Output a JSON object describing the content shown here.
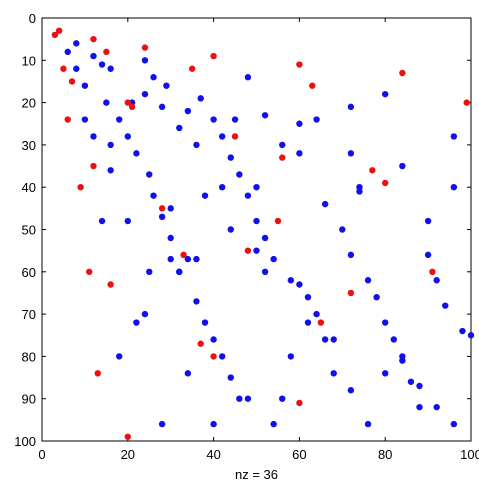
{
  "chart_data": {
    "type": "scatter",
    "title": "",
    "xlabel": "nz = 36",
    "ylabel": "",
    "xlim": [
      0,
      100
    ],
    "ylim": [
      0,
      100
    ],
    "y_reversed": true,
    "grid": false,
    "legend": "none",
    "x_ticks": [
      0,
      20,
      40,
      60,
      80,
      100
    ],
    "y_ticks": [
      0,
      10,
      20,
      30,
      40,
      50,
      60,
      70,
      80,
      90,
      100
    ],
    "x_tick_labels": [
      "0",
      "20",
      "40",
      "60",
      "80",
      "100"
    ],
    "y_tick_labels": [
      "0",
      "10",
      "20",
      "30",
      "40",
      "50",
      "60",
      "70",
      "80",
      "90",
      "100"
    ],
    "series": [
      {
        "color": "#1010ee",
        "points": [
          [
            6,
            8
          ],
          [
            8,
            6
          ],
          [
            8,
            12
          ],
          [
            10,
            16
          ],
          [
            12,
            9
          ],
          [
            14,
            11
          ],
          [
            15,
            20
          ],
          [
            16,
            12
          ],
          [
            16,
            30
          ],
          [
            18,
            24
          ],
          [
            20,
            28
          ],
          [
            21,
            20
          ],
          [
            22,
            32
          ],
          [
            24,
            10
          ],
          [
            24,
            18
          ],
          [
            25,
            37
          ],
          [
            26,
            14
          ],
          [
            26,
            42
          ],
          [
            28,
            21
          ],
          [
            28,
            47
          ],
          [
            29,
            16
          ],
          [
            30,
            52
          ],
          [
            30,
            57
          ],
          [
            32,
            26
          ],
          [
            32,
            60
          ],
          [
            34,
            22
          ],
          [
            34,
            57
          ],
          [
            36,
            30
          ],
          [
            36,
            67
          ],
          [
            37,
            19
          ],
          [
            38,
            72
          ],
          [
            40,
            24
          ],
          [
            40,
            76
          ],
          [
            42,
            28
          ],
          [
            42,
            80
          ],
          [
            44,
            33
          ],
          [
            44,
            85
          ],
          [
            46,
            37
          ],
          [
            46,
            90
          ],
          [
            48,
            14
          ],
          [
            48,
            42
          ],
          [
            50,
            48
          ],
          [
            52,
            52
          ],
          [
            52,
            23
          ],
          [
            54,
            57
          ],
          [
            56,
            30
          ],
          [
            58,
            62
          ],
          [
            60,
            25
          ],
          [
            60,
            32
          ],
          [
            62,
            66
          ],
          [
            64,
            70
          ],
          [
            66,
            44
          ],
          [
            68,
            76
          ],
          [
            70,
            50
          ],
          [
            72,
            21
          ],
          [
            72,
            56
          ],
          [
            74,
            41
          ],
          [
            76,
            62
          ],
          [
            78,
            66
          ],
          [
            80,
            18
          ],
          [
            80,
            72
          ],
          [
            82,
            76
          ],
          [
            84,
            81
          ],
          [
            84,
            35
          ],
          [
            86,
            86
          ],
          [
            88,
            92
          ],
          [
            90,
            48
          ],
          [
            90,
            56
          ],
          [
            92,
            62
          ],
          [
            94,
            68
          ],
          [
            96,
            28
          ],
          [
            96,
            40
          ],
          [
            98,
            74
          ],
          [
            100,
            75
          ],
          [
            10,
            24
          ],
          [
            16,
            36
          ],
          [
            20,
            48
          ],
          [
            22,
            72
          ],
          [
            24,
            70
          ],
          [
            25,
            60
          ],
          [
            28,
            96
          ],
          [
            30,
            45
          ],
          [
            32,
            60
          ],
          [
            34,
            84
          ],
          [
            38,
            42
          ],
          [
            40,
            96
          ],
          [
            42,
            40
          ],
          [
            45,
            24
          ],
          [
            48,
            90
          ],
          [
            50,
            40
          ],
          [
            52,
            60
          ],
          [
            56,
            90
          ],
          [
            58,
            80
          ],
          [
            60,
            63
          ],
          [
            62,
            72
          ],
          [
            64,
            24
          ],
          [
            68,
            84
          ],
          [
            72,
            88
          ],
          [
            76,
            96
          ],
          [
            80,
            84
          ],
          [
            84,
            80
          ],
          [
            88,
            87
          ],
          [
            92,
            92
          ],
          [
            96,
            96
          ],
          [
            72,
            32
          ],
          [
            74,
            40
          ],
          [
            66,
            76
          ],
          [
            54,
            96
          ],
          [
            50,
            55
          ],
          [
            44,
            50
          ],
          [
            36,
            57
          ],
          [
            18,
            80
          ],
          [
            14,
            48
          ],
          [
            12,
            28
          ]
        ]
      },
      {
        "color": "#ee1010",
        "points": [
          [
            3,
            4
          ],
          [
            4,
            3
          ],
          [
            5,
            12
          ],
          [
            6,
            24
          ],
          [
            7,
            15
          ],
          [
            9,
            40
          ],
          [
            11,
            60
          ],
          [
            12,
            5
          ],
          [
            12,
            35
          ],
          [
            13,
            84
          ],
          [
            15,
            8
          ],
          [
            16,
            63
          ],
          [
            20,
            20
          ],
          [
            20,
            99
          ],
          [
            21,
            21
          ],
          [
            24,
            7
          ],
          [
            28,
            45
          ],
          [
            33,
            56
          ],
          [
            35,
            12
          ],
          [
            37,
            77
          ],
          [
            40,
            9
          ],
          [
            40,
            80
          ],
          [
            45,
            28
          ],
          [
            48,
            55
          ],
          [
            55,
            48
          ],
          [
            56,
            33
          ],
          [
            60,
            11
          ],
          [
            60,
            91
          ],
          [
            63,
            16
          ],
          [
            65,
            72
          ],
          [
            72,
            65
          ],
          [
            77,
            36
          ],
          [
            80,
            39
          ],
          [
            84,
            13
          ],
          [
            91,
            60
          ],
          [
            99,
            20
          ]
        ]
      }
    ]
  }
}
